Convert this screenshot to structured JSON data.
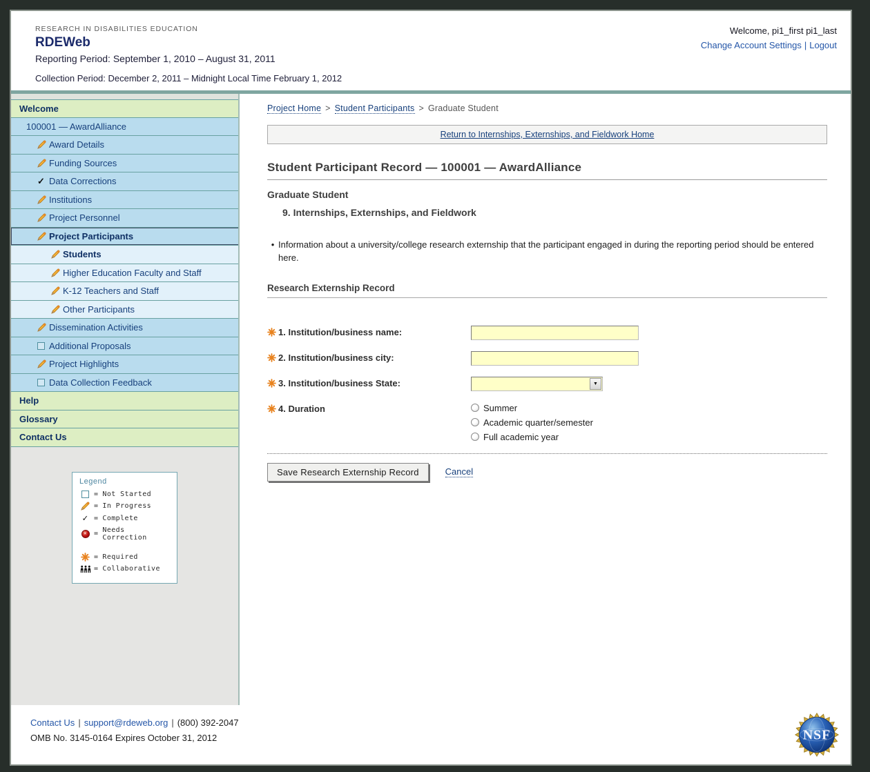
{
  "colors": {
    "accent_teal": "#7fa6a0",
    "sidebar_green": "#ddeec3",
    "sidebar_blue": "#b9dcee",
    "sidebar_light": "#e2f1fa",
    "link_navy": "#17407c",
    "link_blue": "#2456a8",
    "required_orange": "#e8821e",
    "input_yellow": "#ffffc8"
  },
  "header": {
    "eyebrow": "RESEARCH IN DISABILITIES EDUCATION",
    "app_title": "RDEWeb",
    "reporting_period": "Reporting Period: September 1, 2010 – August 31, 2011",
    "collection_period": "Collection Period: December 2, 2011 – Midnight Local Time February 1, 2012",
    "welcome_text": "Welcome, pi1_first pi1_last",
    "account_settings_label": "Change Account Settings",
    "divider": "|",
    "logout_label": "Logout"
  },
  "sidebar": {
    "items": [
      {
        "label": "Welcome",
        "style": "green",
        "icon": "none",
        "indent": 0,
        "bold": true
      },
      {
        "label": "100001 — AwardAlliance",
        "style": "blue",
        "icon": "none",
        "indent": 1,
        "bold": false
      },
      {
        "label": "Award Details",
        "style": "blue",
        "icon": "pencil",
        "indent": 2,
        "bold": false
      },
      {
        "label": "Funding Sources",
        "style": "blue",
        "icon": "pencil",
        "indent": 2,
        "bold": false
      },
      {
        "label": "Data Corrections",
        "style": "blue",
        "icon": "check",
        "indent": 2,
        "bold": false
      },
      {
        "label": "Institutions",
        "style": "blue",
        "icon": "pencil",
        "indent": 2,
        "bold": false
      },
      {
        "label": "Project Personnel",
        "style": "blue",
        "icon": "pencil",
        "indent": 2,
        "bold": false
      },
      {
        "label": "Project Participants",
        "style": "blue",
        "icon": "pencil",
        "indent": 2,
        "bold": true,
        "selected": true
      },
      {
        "label": "Students",
        "style": "light",
        "icon": "pencil",
        "indent": 3,
        "bold": true
      },
      {
        "label": "Higher Education Faculty and Staff",
        "style": "light",
        "icon": "pencil",
        "indent": 3,
        "bold": false
      },
      {
        "label": "K-12 Teachers and Staff",
        "style": "light",
        "icon": "pencil",
        "indent": 3,
        "bold": false
      },
      {
        "label": "Other Participants",
        "style": "light",
        "icon": "pencil",
        "indent": 3,
        "bold": false
      },
      {
        "label": "Dissemination Activities",
        "style": "blue",
        "icon": "pencil",
        "indent": 2,
        "bold": false
      },
      {
        "label": "Additional Proposals",
        "style": "blue",
        "icon": "square",
        "indent": 2,
        "bold": false
      },
      {
        "label": "Project Highlights",
        "style": "blue",
        "icon": "pencil",
        "indent": 2,
        "bold": false
      },
      {
        "label": "Data Collection Feedback",
        "style": "blue",
        "icon": "square",
        "indent": 2,
        "bold": false
      },
      {
        "label": "Help",
        "style": "green",
        "icon": "none",
        "indent": 0,
        "bold": true
      },
      {
        "label": "Glossary",
        "style": "green",
        "icon": "none",
        "indent": 0,
        "bold": true
      },
      {
        "label": "Contact Us",
        "style": "green",
        "icon": "none",
        "indent": 0,
        "bold": true
      }
    ]
  },
  "legend": {
    "title": "Legend",
    "equals": "=",
    "items": [
      {
        "icon": "square",
        "label": "Not Started",
        "gap": false
      },
      {
        "icon": "pencil",
        "label": "In Progress",
        "gap": false
      },
      {
        "icon": "check",
        "label": "Complete",
        "gap": false
      },
      {
        "icon": "redx",
        "label": "Needs Correction",
        "gap": false
      },
      {
        "icon": "asterisk",
        "label": "Required",
        "gap": true
      },
      {
        "icon": "people",
        "label": "Collaborative",
        "gap": false
      }
    ]
  },
  "main": {
    "breadcrumb": [
      {
        "label": "Project Home",
        "link": true
      },
      {
        "label": "Student Participants",
        "link": true
      },
      {
        "label": "Graduate Student",
        "link": false
      }
    ],
    "breadcrumb_sep": ">",
    "return_link": "Return to Internships, Externships, and Fieldwork Home",
    "page_title": "Student Participant Record — 100001 — AwardAlliance",
    "subtitle": "Graduate Student",
    "section_title": "9. Internships, Externships, and Fieldwork",
    "info_bullet": "•",
    "info_text": "Information about a university/college research externship that the participant engaged in during the reporting period should be entered here.",
    "form": {
      "heading": "Research Externship Record",
      "fields": [
        {
          "label": "1. Institution/business name:",
          "type": "text",
          "required": true,
          "value": ""
        },
        {
          "label": "2. Institution/business city:",
          "type": "text",
          "required": true,
          "value": ""
        },
        {
          "label": "3. Institution/business State:",
          "type": "select",
          "required": true,
          "value": ""
        },
        {
          "label": "4. Duration",
          "type": "radio",
          "required": true,
          "options": [
            "Summer",
            "Academic quarter/semester",
            "Full academic year"
          ],
          "selected_option": ""
        }
      ],
      "save_label": "Save Research Externship Record",
      "cancel_label": "Cancel"
    }
  },
  "footer": {
    "contact_label": "Contact Us",
    "email": "support@rdeweb.org",
    "phone": "(800) 392-2047",
    "divider": "|",
    "omb": "OMB No. 3145-0164 Expires October 31, 2012",
    "nsf_logo_text": "NSF"
  }
}
